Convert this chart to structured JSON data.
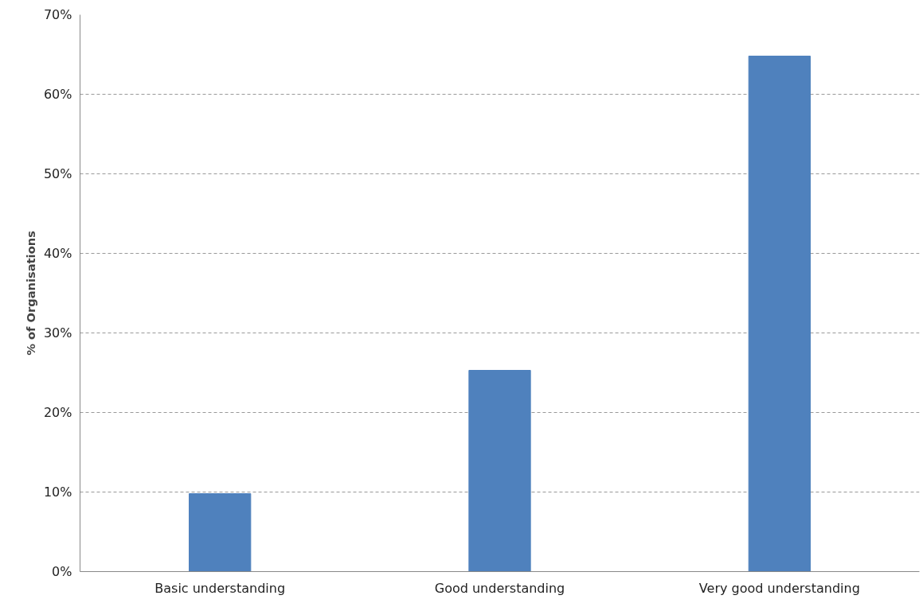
{
  "chart_data": {
    "type": "bar",
    "ylabel": "% of Organisations",
    "categories": [
      "Basic understanding",
      "Good understanding",
      "Very good understanding"
    ],
    "values": [
      9.8,
      25.3,
      64.8
    ],
    "color": "#4f81bd",
    "ylim": [
      0,
      70
    ],
    "yticks": [
      {
        "value": 0,
        "label": "0%"
      },
      {
        "value": 10,
        "label": "10%"
      },
      {
        "value": 20,
        "label": "20%"
      },
      {
        "value": 30,
        "label": "30%"
      },
      {
        "value": 40,
        "label": "40%"
      },
      {
        "value": 50,
        "label": "50%"
      },
      {
        "value": 60,
        "label": "60%"
      },
      {
        "value": 70,
        "label": "70%"
      }
    ],
    "grid": "y"
  }
}
